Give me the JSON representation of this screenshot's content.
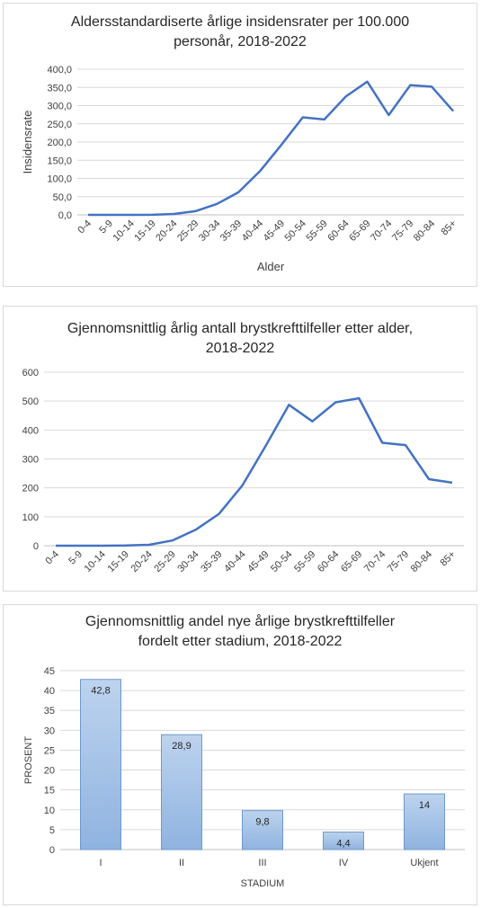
{
  "chart_data": [
    {
      "type": "line",
      "title_line1": "Aldersstandardiserte årlige insidensrater per 100.000",
      "title_line2": "personår, 2018-2022",
      "xlabel": "Alder",
      "ylabel": "Insidensrate",
      "ylim": [
        0,
        400
      ],
      "yticks": [
        "0,0",
        "50,0",
        "100,0",
        "150,0",
        "200,0",
        "250,0",
        "300,0",
        "350,0",
        "400,0"
      ],
      "grid": true,
      "legend": "none",
      "color": "#4472c4",
      "categories": [
        "0-4",
        "5-9",
        "10-14",
        "15-19",
        "20-24",
        "25-29",
        "30-34",
        "35-39",
        "40-44",
        "45-49",
        "50-54",
        "55-59",
        "60-64",
        "65-69",
        "70-74",
        "75-79",
        "80-84",
        "85+"
      ],
      "values": [
        0,
        0,
        0,
        0.3,
        2.5,
        10,
        30,
        62,
        120,
        192,
        268,
        262,
        325,
        366,
        274,
        356,
        352,
        285
      ]
    },
    {
      "type": "line",
      "title_line1": "Gjennomsnittlig årlig antall brystkrefttilfeller etter alder,",
      "title_line2": "2018-2022",
      "xlabel": "",
      "ylabel": "",
      "ylim": [
        0,
        600
      ],
      "yticks": [
        "0",
        "100",
        "200",
        "300",
        "400",
        "500",
        "600"
      ],
      "grid": true,
      "legend": "none",
      "color": "#4472c4",
      "categories": [
        "0-4",
        "5-9",
        "10-14",
        "15-19",
        "20-24",
        "25-29",
        "30-34",
        "35-39",
        "40-44",
        "45-49",
        "50-54",
        "55-59",
        "60-64",
        "65-69",
        "70-74",
        "75-79",
        "80-84",
        "85+"
      ],
      "values": [
        0,
        0,
        0,
        0.5,
        3,
        18,
        55,
        110,
        208,
        345,
        487,
        430,
        496,
        510,
        356,
        348,
        230,
        218
      ]
    },
    {
      "type": "bar",
      "title_line1": "Gjennomsnittlig andel nye årlige brystkrefttilfeller",
      "title_line2": "fordelt etter stadium, 2018-2022",
      "xlabel": "STADIUM",
      "ylabel": "PROSENT",
      "ylim": [
        0,
        45
      ],
      "yticks": [
        "0",
        "5",
        "10",
        "15",
        "20",
        "25",
        "30",
        "35",
        "40",
        "45"
      ],
      "grid": true,
      "legend": "none",
      "color_top": "#bdd3ee",
      "color_bottom": "#8fb3e0",
      "border_color": "#6f98cc",
      "categories": [
        "I",
        "II",
        "III",
        "IV",
        "Ukjent"
      ],
      "values": [
        42.8,
        28.9,
        9.8,
        4.4,
        14
      ],
      "data_labels": [
        "42,8",
        "28,9",
        "9,8",
        "4,4",
        "14"
      ]
    }
  ]
}
